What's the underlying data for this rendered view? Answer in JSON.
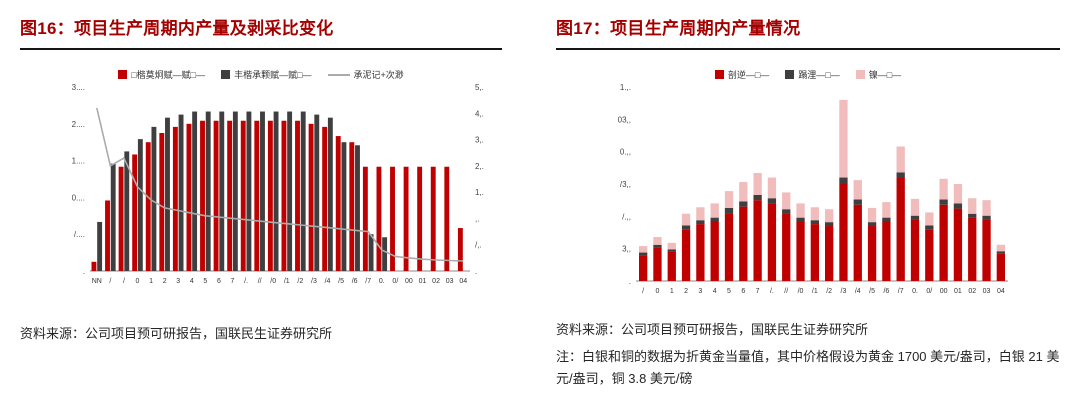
{
  "theme": {
    "title_color": "#a40000",
    "rule_color": "#151515",
    "bar_red": "#c00000",
    "bar_dark": "#3f3f3f",
    "bar_pink": "#f0bcbc",
    "line_gray": "#ababab",
    "text_color": "#262626"
  },
  "left_panel": {
    "title": "图16：项目生产周期内产量及剥采比变化",
    "source": "资料来源：公司项目预可研报告，国联民生证券研究所"
  },
  "right_panel": {
    "title": "图17：项目生产周期内产量情况",
    "source": "资料来源：公司项目预可研报告，国联民生证券研究所",
    "note": "注：白银和铜的数据为折黄金当量值，其中价格假设为黄金 1700 美元/盎司，白银 21 美元/盎司，铜 3.8 美元/磅"
  },
  "chart_data": [
    {
      "type": "grouped-bar-line",
      "title": "图16：项目生产周期内产量及剥采比变化",
      "categories": [
        "NN",
        "/",
        "/",
        "0",
        "1",
        "2",
        "3",
        "4",
        "5",
        "6",
        "7",
        "/.",
        "//",
        "/0",
        "/1",
        "/2",
        "/3",
        "/4",
        "/5",
        "/6",
        "/7",
        "0.",
        "0/",
        "00",
        "01",
        "02",
        "03",
        "04"
      ],
      "ylim": [
        0,
        3
      ],
      "yticks": [
        ".",
        "/....",
        "0....",
        "1....",
        "2....",
        "3...."
      ],
      "y2lim": [
        0,
        7
      ],
      "y2ticks": [
        ".",
        "/,.",
        ",.",
        "1,.",
        "2,.",
        "3,.",
        "4,.",
        "5,."
      ],
      "grid": false,
      "legend_position": "top",
      "series": [
        {
          "name": "□楷莫炯赋—赋□—",
          "color": "#c00000",
          "values": [
            0.15,
            1.15,
            1.7,
            1.9,
            2.1,
            2.25,
            2.35,
            2.4,
            2.45,
            2.45,
            2.45,
            2.45,
            2.45,
            2.45,
            2.45,
            2.45,
            2.4,
            2.35,
            2.2,
            2.1,
            1.7,
            1.7,
            1.7,
            1.7,
            1.7,
            1.7,
            1.7,
            0.7
          ]
        },
        {
          "name": "丰楷承颗赋—赋□—",
          "color": "#3f3f3f",
          "values": [
            0.8,
            1.75,
            1.95,
            2.15,
            2.35,
            2.5,
            2.55,
            2.6,
            2.6,
            2.6,
            2.6,
            2.6,
            2.6,
            2.6,
            2.6,
            2.6,
            2.55,
            2.5,
            2.1,
            2.05,
            0.6,
            0.55,
            0,
            0,
            0,
            0,
            0,
            0
          ]
        }
      ],
      "line": {
        "name": "承泥记+次渺",
        "color": "#ababab",
        "axis": "right",
        "values": [
          6.2,
          4.0,
          4.3,
          3.2,
          2.7,
          2.4,
          2.3,
          2.2,
          2.1,
          2.05,
          2.0,
          1.95,
          1.9,
          1.85,
          1.8,
          1.75,
          1.7,
          1.65,
          1.6,
          1.55,
          1.5,
          0.8,
          0.55,
          0.5,
          0.45,
          0.42,
          0.4,
          0.38
        ]
      },
      "legend": [
        {
          "label": "□楷莫炯赋—赋□—",
          "color": "#c00000",
          "type": "bar"
        },
        {
          "label": "丰楷承颗赋—赋□—",
          "color": "#3f3f3f",
          "type": "bar"
        },
        {
          "label": "承泥记+次渺",
          "color": "#ababab",
          "type": "line"
        }
      ]
    },
    {
      "type": "stacked-bar",
      "title": "图17：项目生产周期内产量情况",
      "categories": [
        "/",
        "0",
        "1",
        "2",
        "3",
        "4",
        "5",
        "6",
        "7",
        "/.",
        "//",
        "/0",
        "/1",
        "/2",
        "/3",
        "/4",
        "/5",
        "/6",
        "/7",
        "0.",
        "0/",
        "00",
        "01",
        "02",
        "03",
        "04"
      ],
      "ylim": [
        0,
        300
      ],
      "yticks": [
        ".",
        "3,,",
        "/.,,",
        "/3,,",
        "0.,,",
        "03,,",
        "1.,."
      ],
      "grid": false,
      "legend_position": "top",
      "series": [
        {
          "name": "剖逆—□—",
          "color": "#c00000",
          "values": [
            40,
            52,
            45,
            80,
            88,
            92,
            105,
            115,
            125,
            120,
            105,
            92,
            88,
            85,
            150,
            118,
            85,
            92,
            160,
            95,
            80,
            118,
            112,
            98,
            95,
            42
          ]
        },
        {
          "name": "蹋浬—□—",
          "color": "#3f3f3f",
          "values": [
            4,
            4,
            4,
            6,
            6,
            6,
            8,
            8,
            8,
            8,
            6,
            6,
            6,
            6,
            10,
            8,
            6,
            6,
            8,
            6,
            6,
            8,
            8,
            6,
            6,
            4
          ]
        },
        {
          "name": "镍—□—",
          "color": "#f0bcbc",
          "values": [
            10,
            12,
            10,
            18,
            20,
            22,
            26,
            30,
            34,
            32,
            26,
            22,
            20,
            20,
            120,
            30,
            22,
            24,
            40,
            26,
            20,
            32,
            30,
            24,
            24,
            10
          ]
        }
      ],
      "legend": [
        {
          "label": "剖逆—□—",
          "color": "#c00000",
          "type": "bar"
        },
        {
          "label": "蹋浬—□—",
          "color": "#3f3f3f",
          "type": "bar"
        },
        {
          "label": "镍—□—",
          "color": "#f0bcbc",
          "type": "bar"
        }
      ]
    }
  ]
}
